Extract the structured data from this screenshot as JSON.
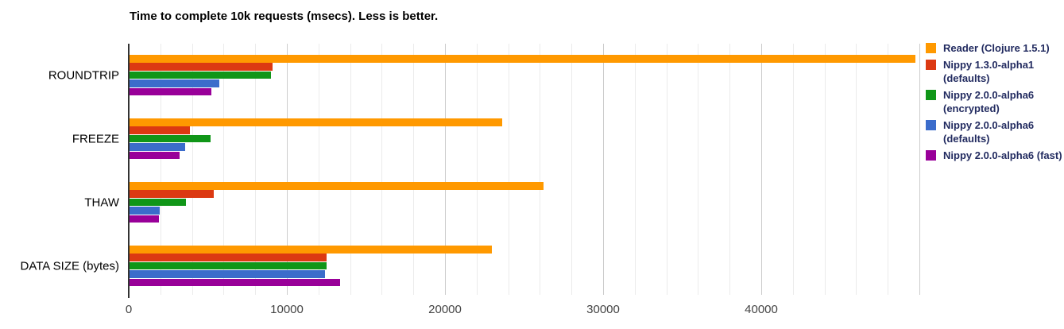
{
  "title": "Time to complete 10k requests (msecs). Less is better.",
  "chart_data": {
    "type": "bar",
    "orientation": "horizontal",
    "title": "Time to complete 10k requests (msecs). Less is better.",
    "categories": [
      "ROUNDTRIP",
      "FREEZE",
      "THAW",
      "DATA SIZE (bytes)"
    ],
    "series": [
      {
        "name": "Reader (Clojure 1.5.1)",
        "color": "#FF9900",
        "values": [
          49700,
          23570,
          26180,
          22920
        ]
      },
      {
        "name": "Nippy 1.3.0-alpha1 (defaults)",
        "color": "#DC3912",
        "values": [
          9040,
          3820,
          5310,
          12440
        ]
      },
      {
        "name": "Nippy 2.0.0-alpha6 (encrypted)",
        "color": "#109618",
        "values": [
          8960,
          5140,
          3570,
          12480
        ]
      },
      {
        "name": "Nippy 2.0.0-alpha6 (defaults)",
        "color": "#3B6CCB",
        "values": [
          5690,
          3520,
          1890,
          12340
        ]
      },
      {
        "name": "Nippy 2.0.0-alpha6 (fast)",
        "color": "#990099",
        "values": [
          5190,
          3180,
          1840,
          13320
        ]
      }
    ],
    "xlim": [
      0,
      50000
    ],
    "x_ticks": [
      0,
      10000,
      20000,
      30000,
      40000
    ],
    "x_tick_labels": [
      "0",
      "10000",
      "20000",
      "30000",
      "40000"
    ],
    "minor_grid_step": 2000,
    "major_grid_step": 10000,
    "grid": true,
    "legend_position": "right"
  },
  "legend": {
    "entries": [
      {
        "lines": [
          "Reader (Clojure 1.5.1)"
        ],
        "color": "#FF9900"
      },
      {
        "lines": [
          "Nippy 1.3.0-alpha1",
          "(defaults)"
        ],
        "color": "#DC3912"
      },
      {
        "lines": [
          "Nippy 2.0.0-alpha6",
          "(encrypted)"
        ],
        "color": "#109618"
      },
      {
        "lines": [
          "Nippy 2.0.0-alpha6",
          "(defaults)"
        ],
        "color": "#3B6CCB"
      },
      {
        "lines": [
          "Nippy 2.0.0-alpha6 (fast)"
        ],
        "color": "#990099"
      }
    ]
  },
  "colors": {
    "background": "#FFFFFF",
    "axis_line": "#333333",
    "gridline_minor": "#EBEBEB",
    "gridline_major": "#CCCCCC",
    "tick_label": "#444444",
    "category_label": "#000000",
    "title": "#000000",
    "legend_text": "#222B60"
  }
}
